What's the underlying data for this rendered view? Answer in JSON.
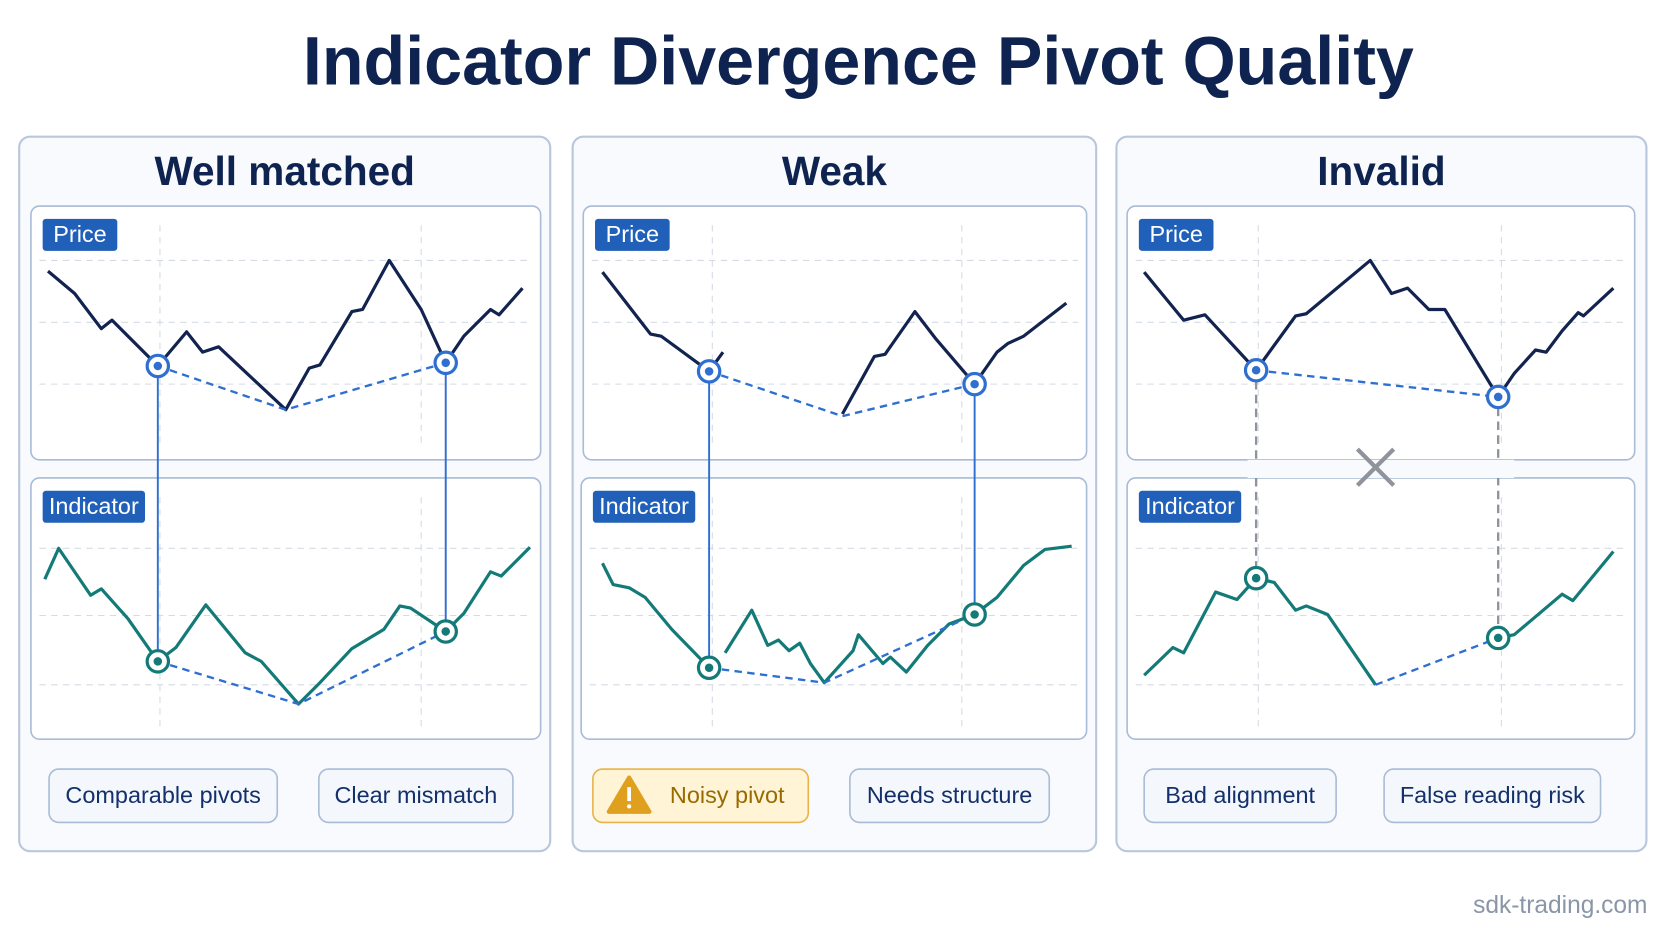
{
  "title": "Indicator Divergence Pivot Quality",
  "panels": [
    {
      "title": "Well matched",
      "price_label": "Price",
      "indicator_label": "Indicator",
      "tags": [
        "Comparable pivots",
        "Clear mismatch"
      ]
    },
    {
      "title": "Weak",
      "price_label": "Price",
      "indicator_label": "Indicator",
      "tags": [
        "Noisy pivot",
        "Needs structure"
      ]
    },
    {
      "title": "Invalid",
      "price_label": "Price",
      "indicator_label": "Indicator",
      "tags": [
        "Bad alignment",
        "False reading risk"
      ]
    }
  ],
  "footer": "sdk-trading.com"
}
